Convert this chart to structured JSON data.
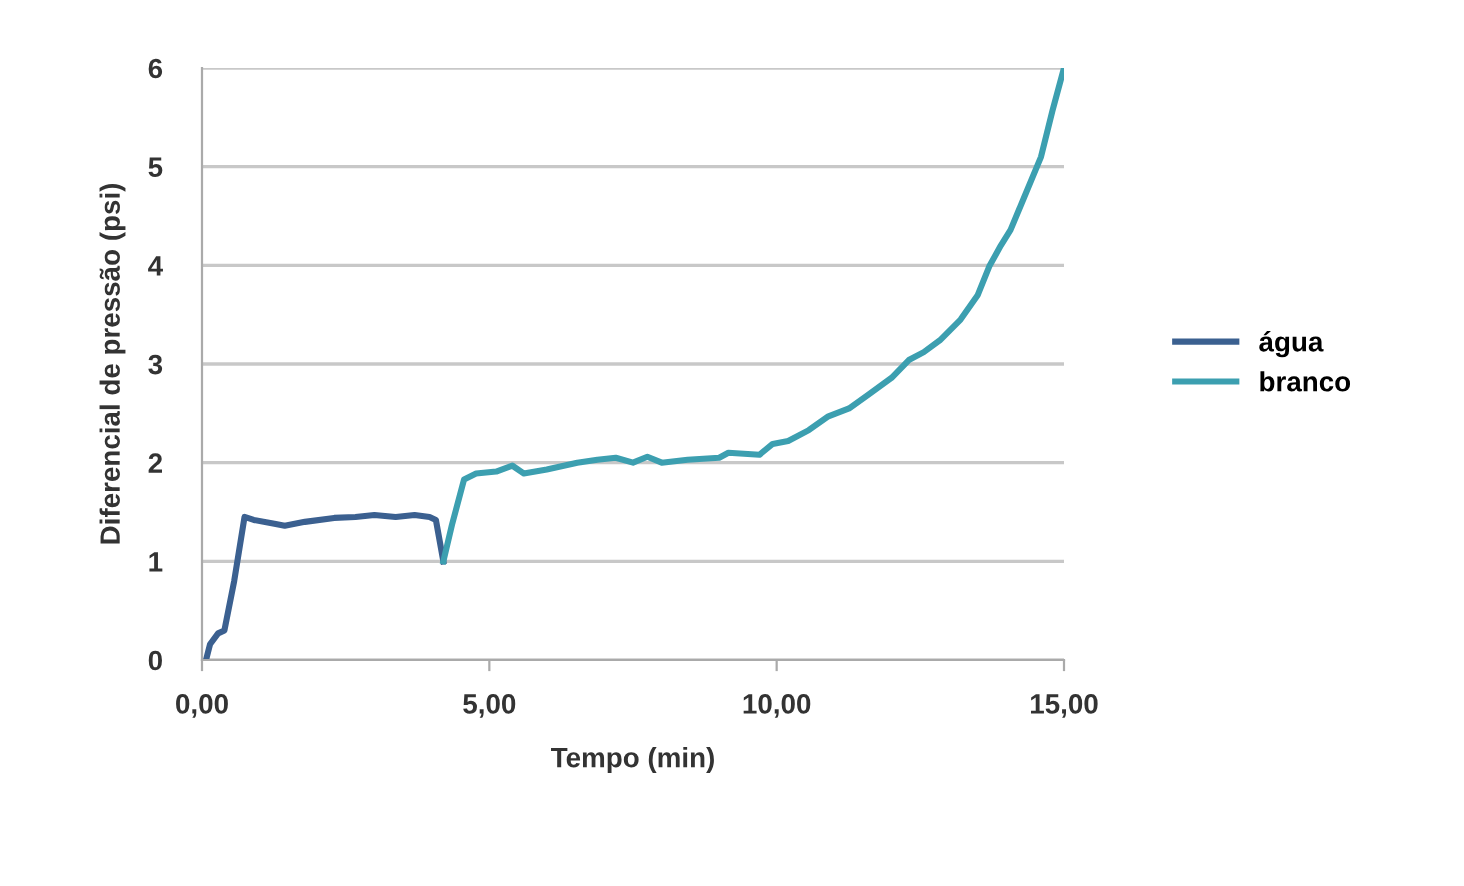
{
  "chart_data": {
    "type": "line",
    "xlabel": "Tempo (min)",
    "ylabel": "Diferencial de pressão (psi)",
    "xlim": [
      0,
      15
    ],
    "xticks": [
      {
        "value": 0,
        "label": "0,00"
      },
      {
        "value": 5,
        "label": "5,00"
      },
      {
        "value": 10,
        "label": "10,00"
      },
      {
        "value": 15,
        "label": "15,00"
      }
    ],
    "ylim": [
      0,
      6
    ],
    "yticks": [
      0,
      1,
      2,
      3,
      4,
      5,
      6
    ],
    "grid": "y",
    "legend": "right",
    "line_style": "solid",
    "series": [
      {
        "name": "água",
        "color": "#3b6090",
        "x": [
          0.07,
          0.14,
          0.28,
          0.39,
          0.56,
          0.74,
          0.9,
          1.26,
          1.44,
          1.79,
          2.3,
          2.67,
          3.0,
          3.37,
          3.7,
          3.96,
          4.07,
          4.2
        ],
        "values": [
          0,
          0.16,
          0.27,
          0.3,
          0.8,
          1.45,
          1.42,
          1.38,
          1.36,
          1.4,
          1.44,
          1.45,
          1.47,
          1.45,
          1.47,
          1.45,
          1.42,
          1.0
        ]
      },
      {
        "name": "branco",
        "color": "#3c9fb0",
        "x": [
          4.2,
          4.35,
          4.56,
          4.77,
          5.12,
          5.4,
          5.6,
          6.0,
          6.53,
          6.88,
          7.2,
          7.5,
          7.75,
          8.0,
          8.45,
          9.0,
          9.16,
          9.7,
          9.93,
          10.2,
          10.56,
          10.9,
          11.26,
          11.6,
          12.0,
          12.3,
          12.56,
          12.84,
          13.2,
          13.5,
          13.7,
          13.9,
          14.07,
          14.3,
          14.6,
          14.8,
          15.0
        ],
        "values": [
          1.0,
          1.37,
          1.83,
          1.89,
          1.91,
          1.97,
          1.89,
          1.93,
          2.0,
          2.03,
          2.05,
          2.0,
          2.06,
          2.0,
          2.03,
          2.05,
          2.1,
          2.08,
          2.19,
          2.22,
          2.33,
          2.47,
          2.55,
          2.69,
          2.86,
          3.04,
          3.12,
          3.24,
          3.45,
          3.7,
          3.99,
          4.2,
          4.36,
          4.68,
          5.1,
          5.57,
          6.0
        ]
      }
    ]
  }
}
